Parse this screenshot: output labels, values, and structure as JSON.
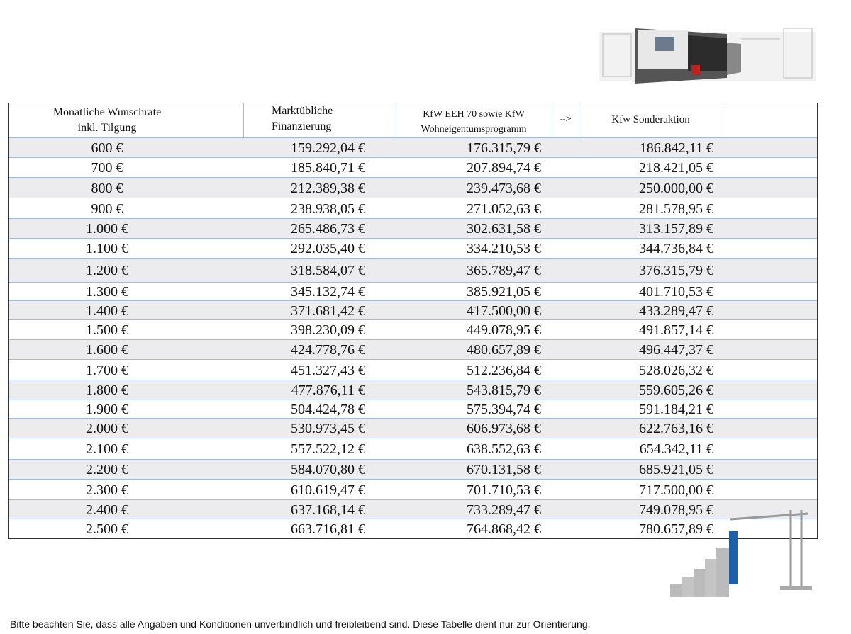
{
  "table": {
    "header": [
      "Monatliche Wunschrate\ninkl. Tilgung",
      "Marktübliche\nFinanzierung",
      "KfW  EEH 70 sowie KfW\nWohneigentumsprogramm",
      "-->",
      "Kfw Sonderaktion"
    ],
    "rows": [
      [
        "600 €",
        "159.292,04 €",
        "176.315,79 €",
        "186.842,11 €"
      ],
      [
        "700 €",
        "185.840,71 €",
        "207.894,74 €",
        "218.421,05 €"
      ],
      [
        "800 €",
        "212.389,38 €",
        "239.473,68 €",
        "250.000,00 €"
      ],
      [
        "900 €",
        "238.938,05 €",
        "271.052,63 €",
        "281.578,95 €"
      ],
      [
        "1.000 €",
        "265.486,73 €",
        "302.631,58 €",
        "313.157,89 €"
      ],
      [
        "1.100 €",
        "292.035,40 €",
        "334.210,53 €",
        "344.736,84 €"
      ],
      [
        "1.200 €",
        "318.584,07 €",
        "365.789,47 €",
        "376.315,79 €"
      ],
      [
        "1.300 €",
        "345.132,74 €",
        "385.921,05 €",
        "401.710,53 €"
      ],
      [
        "1.400 €",
        "371.681,42 €",
        "417.500,00 €",
        "433.289,47 €"
      ],
      [
        "1.500 €",
        "398.230,09 €",
        "449.078,95 €",
        "491.857,14 €"
      ],
      [
        "1.600 €",
        "424.778,76 €",
        "480.657,89 €",
        "496.447,37 €"
      ],
      [
        "1.700 €",
        "451.327,43 €",
        "512.236,84 €",
        "528.026,32 €"
      ],
      [
        "1.800 €",
        "477.876,11 €",
        "543.815,79 €",
        "559.605,26 €"
      ],
      [
        "1.900 €",
        "504.424,78 €",
        "575.394,74 €",
        "591.184,21 €"
      ],
      [
        "2.000 €",
        "530.973,45 €",
        "606.973,68 €",
        "622.763,16 €"
      ],
      [
        "2.100 €",
        "557.522,12 €",
        "638.552,63 €",
        "654.342,11 €"
      ],
      [
        "2.200 €",
        "584.070,80 €",
        "670.131,58 €",
        "685.921,05 €"
      ],
      [
        "2.300 €",
        "610.619,47 €",
        "701.710,53 €",
        "717.500,00 €"
      ],
      [
        "2.400 €",
        "637.168,14 €",
        "733.289,47 €",
        "749.078,95 €"
      ],
      [
        "2.500 €",
        "663.716,81 €",
        "764.868,42 €",
        "780.657,89 €"
      ]
    ]
  },
  "footer": "Bitte beachten Sie, dass alle Angaben und Konditionen unverbindlich und freibleibend sind. Diese Tabelle dient nur zur Orientierung."
}
